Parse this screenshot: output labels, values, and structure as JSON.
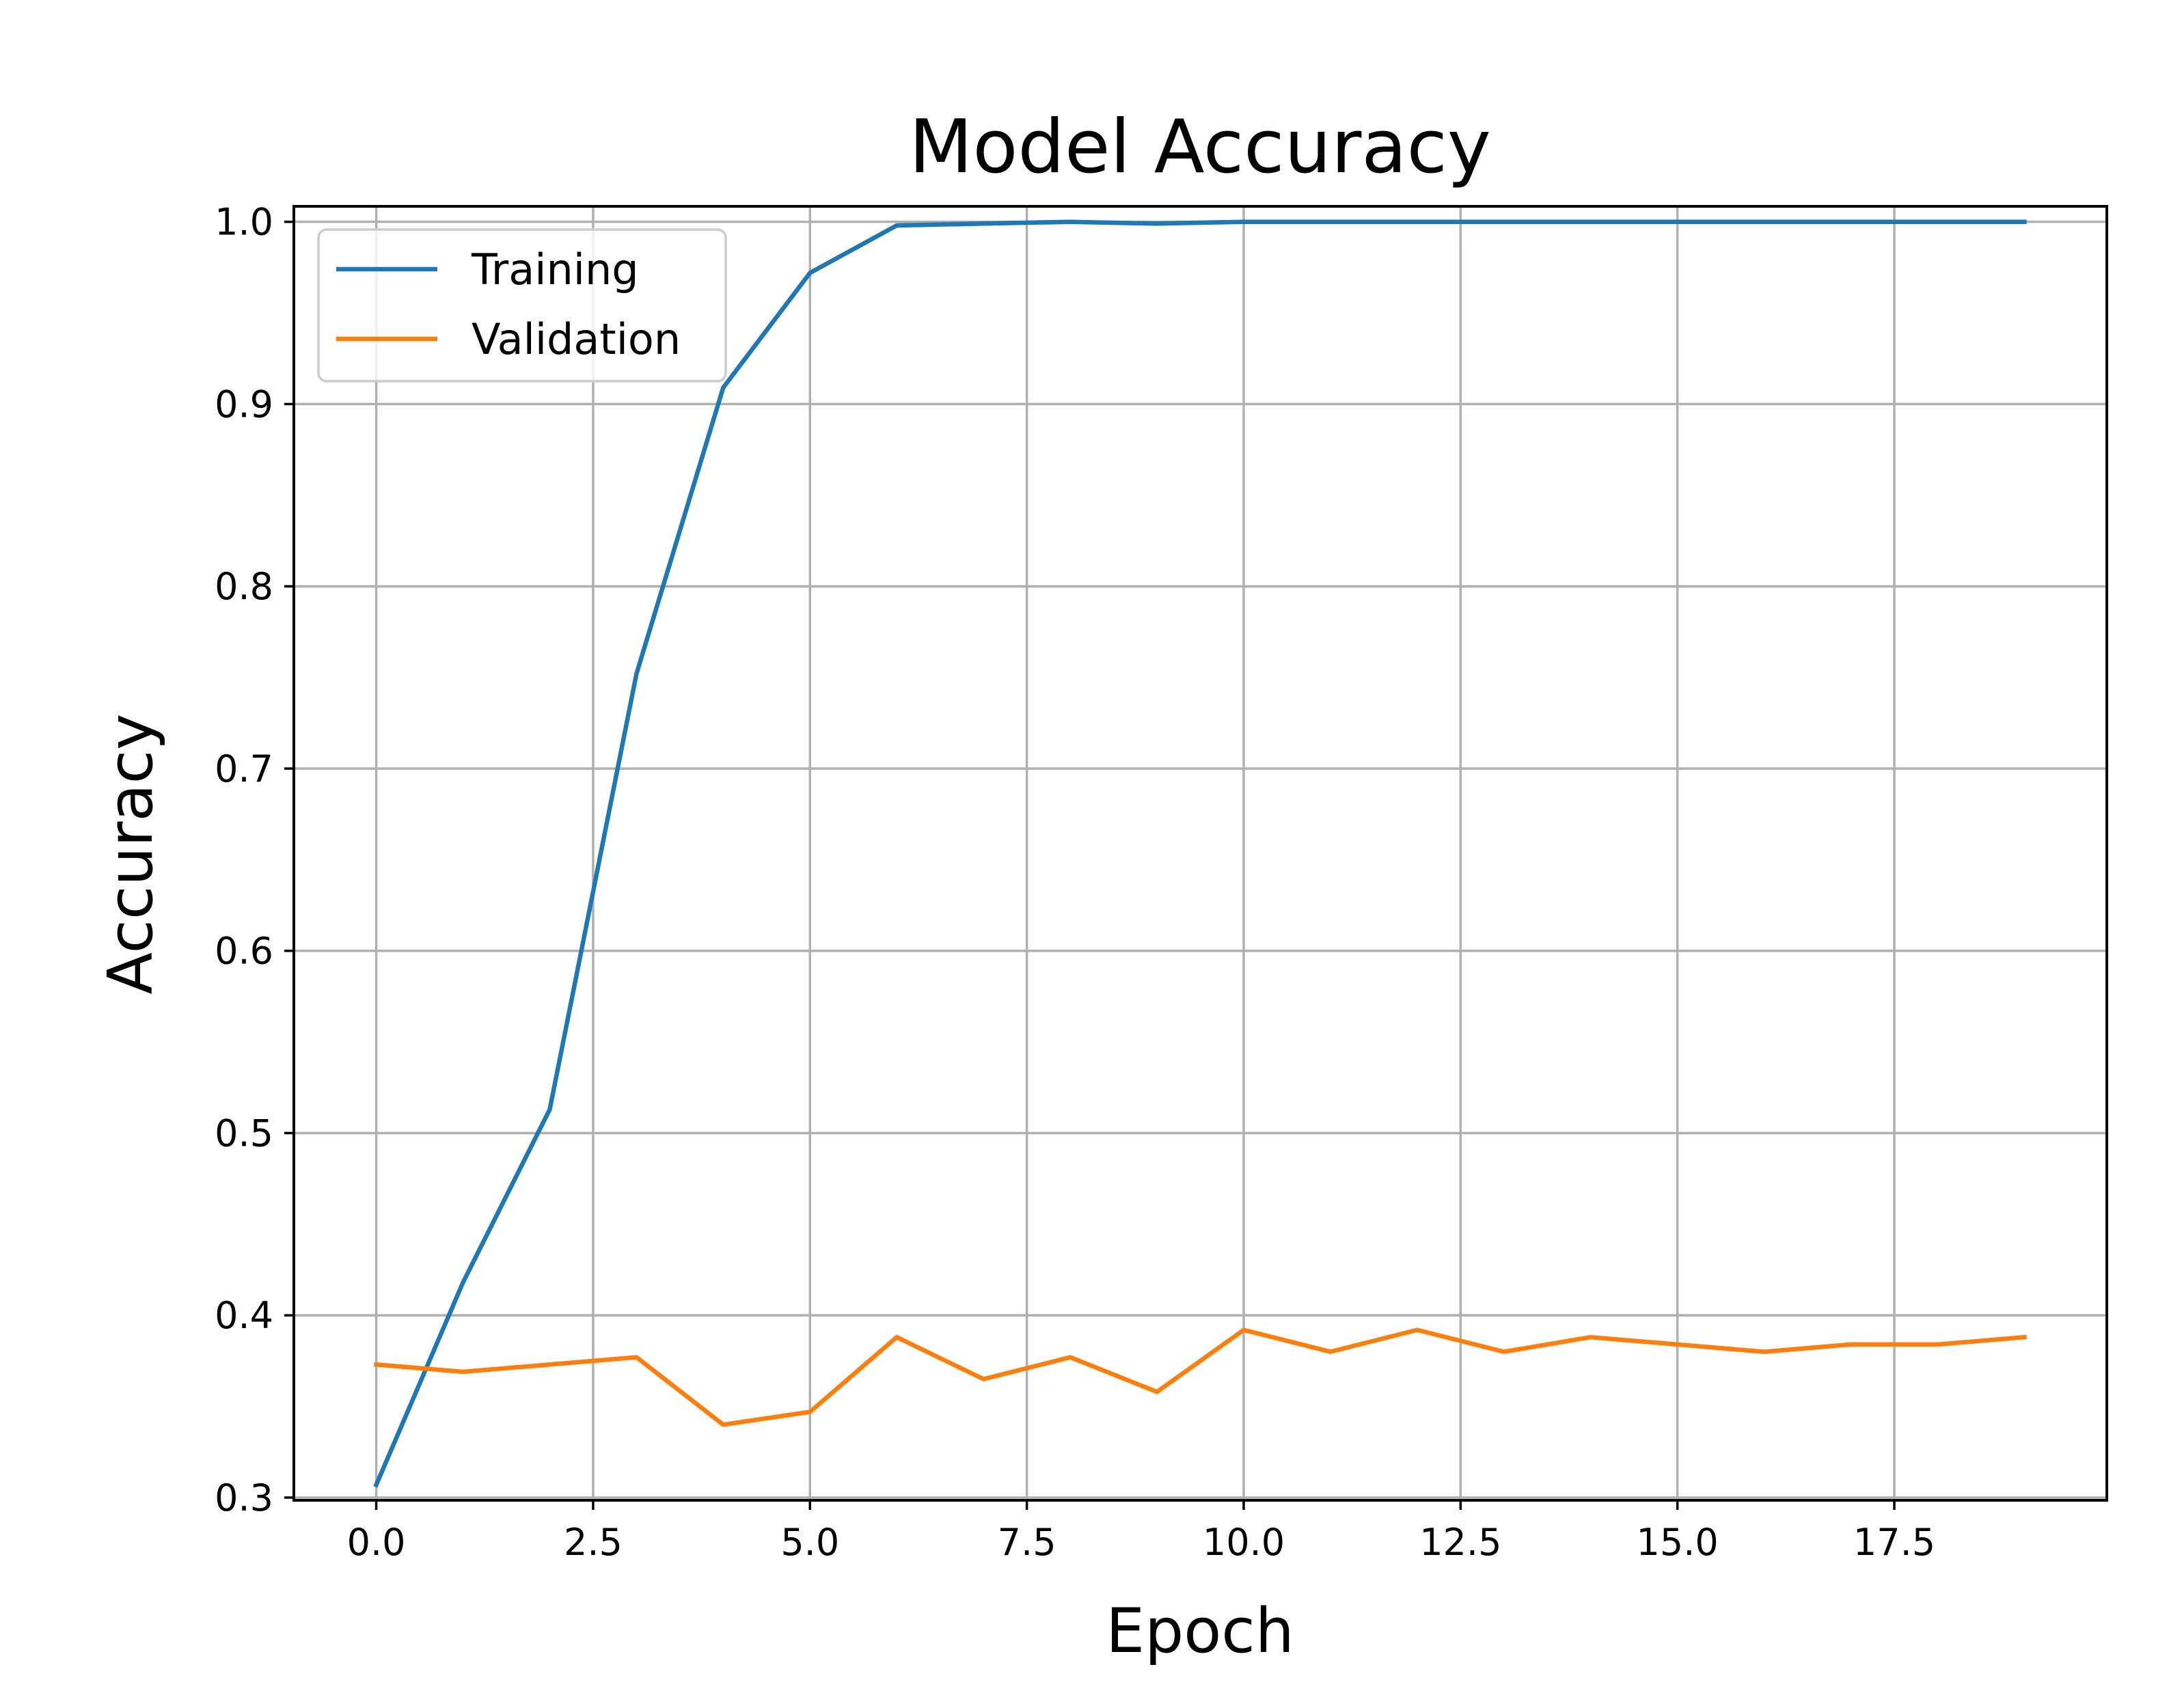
{
  "chart_data": {
    "type": "line",
    "title": "Model Accuracy",
    "xlabel": "Epoch",
    "ylabel": "Accuracy",
    "xlim": [
      -0.95,
      19.95
    ],
    "ylim": [
      0.2985,
      1.0085
    ],
    "xticks": [
      0.0,
      2.5,
      5.0,
      7.5,
      10.0,
      12.5,
      15.0,
      17.5
    ],
    "xtick_labels": [
      "0.0",
      "2.5",
      "5.0",
      "7.5",
      "10.0",
      "12.5",
      "15.0",
      "17.5"
    ],
    "yticks": [
      0.3,
      0.4,
      0.5,
      0.6,
      0.7,
      0.8,
      0.9,
      1.0
    ],
    "ytick_labels": [
      "0.3",
      "0.4",
      "0.5",
      "0.6",
      "0.7",
      "0.8",
      "0.9",
      "1.0"
    ],
    "grid": true,
    "legend_position": "top-left",
    "x": [
      0,
      1,
      2,
      3,
      4,
      5,
      6,
      7,
      8,
      9,
      10,
      11,
      12,
      13,
      14,
      15,
      16,
      17,
      18,
      19
    ],
    "series": [
      {
        "name": "Training",
        "color": "#1f77b4",
        "values": [
          0.307,
          0.418,
          0.513,
          0.752,
          0.909,
          0.972,
          0.998,
          0.999,
          1.0,
          0.999,
          1.0,
          1.0,
          1.0,
          1.0,
          1.0,
          1.0,
          1.0,
          1.0,
          1.0,
          1.0
        ]
      },
      {
        "name": "Validation",
        "color": "#ff7f0e",
        "values": [
          0.373,
          0.369,
          0.373,
          0.377,
          0.34,
          0.347,
          0.388,
          0.365,
          0.377,
          0.358,
          0.392,
          0.38,
          0.392,
          0.38,
          0.388,
          0.384,
          0.38,
          0.384,
          0.384,
          0.388
        ]
      }
    ]
  }
}
